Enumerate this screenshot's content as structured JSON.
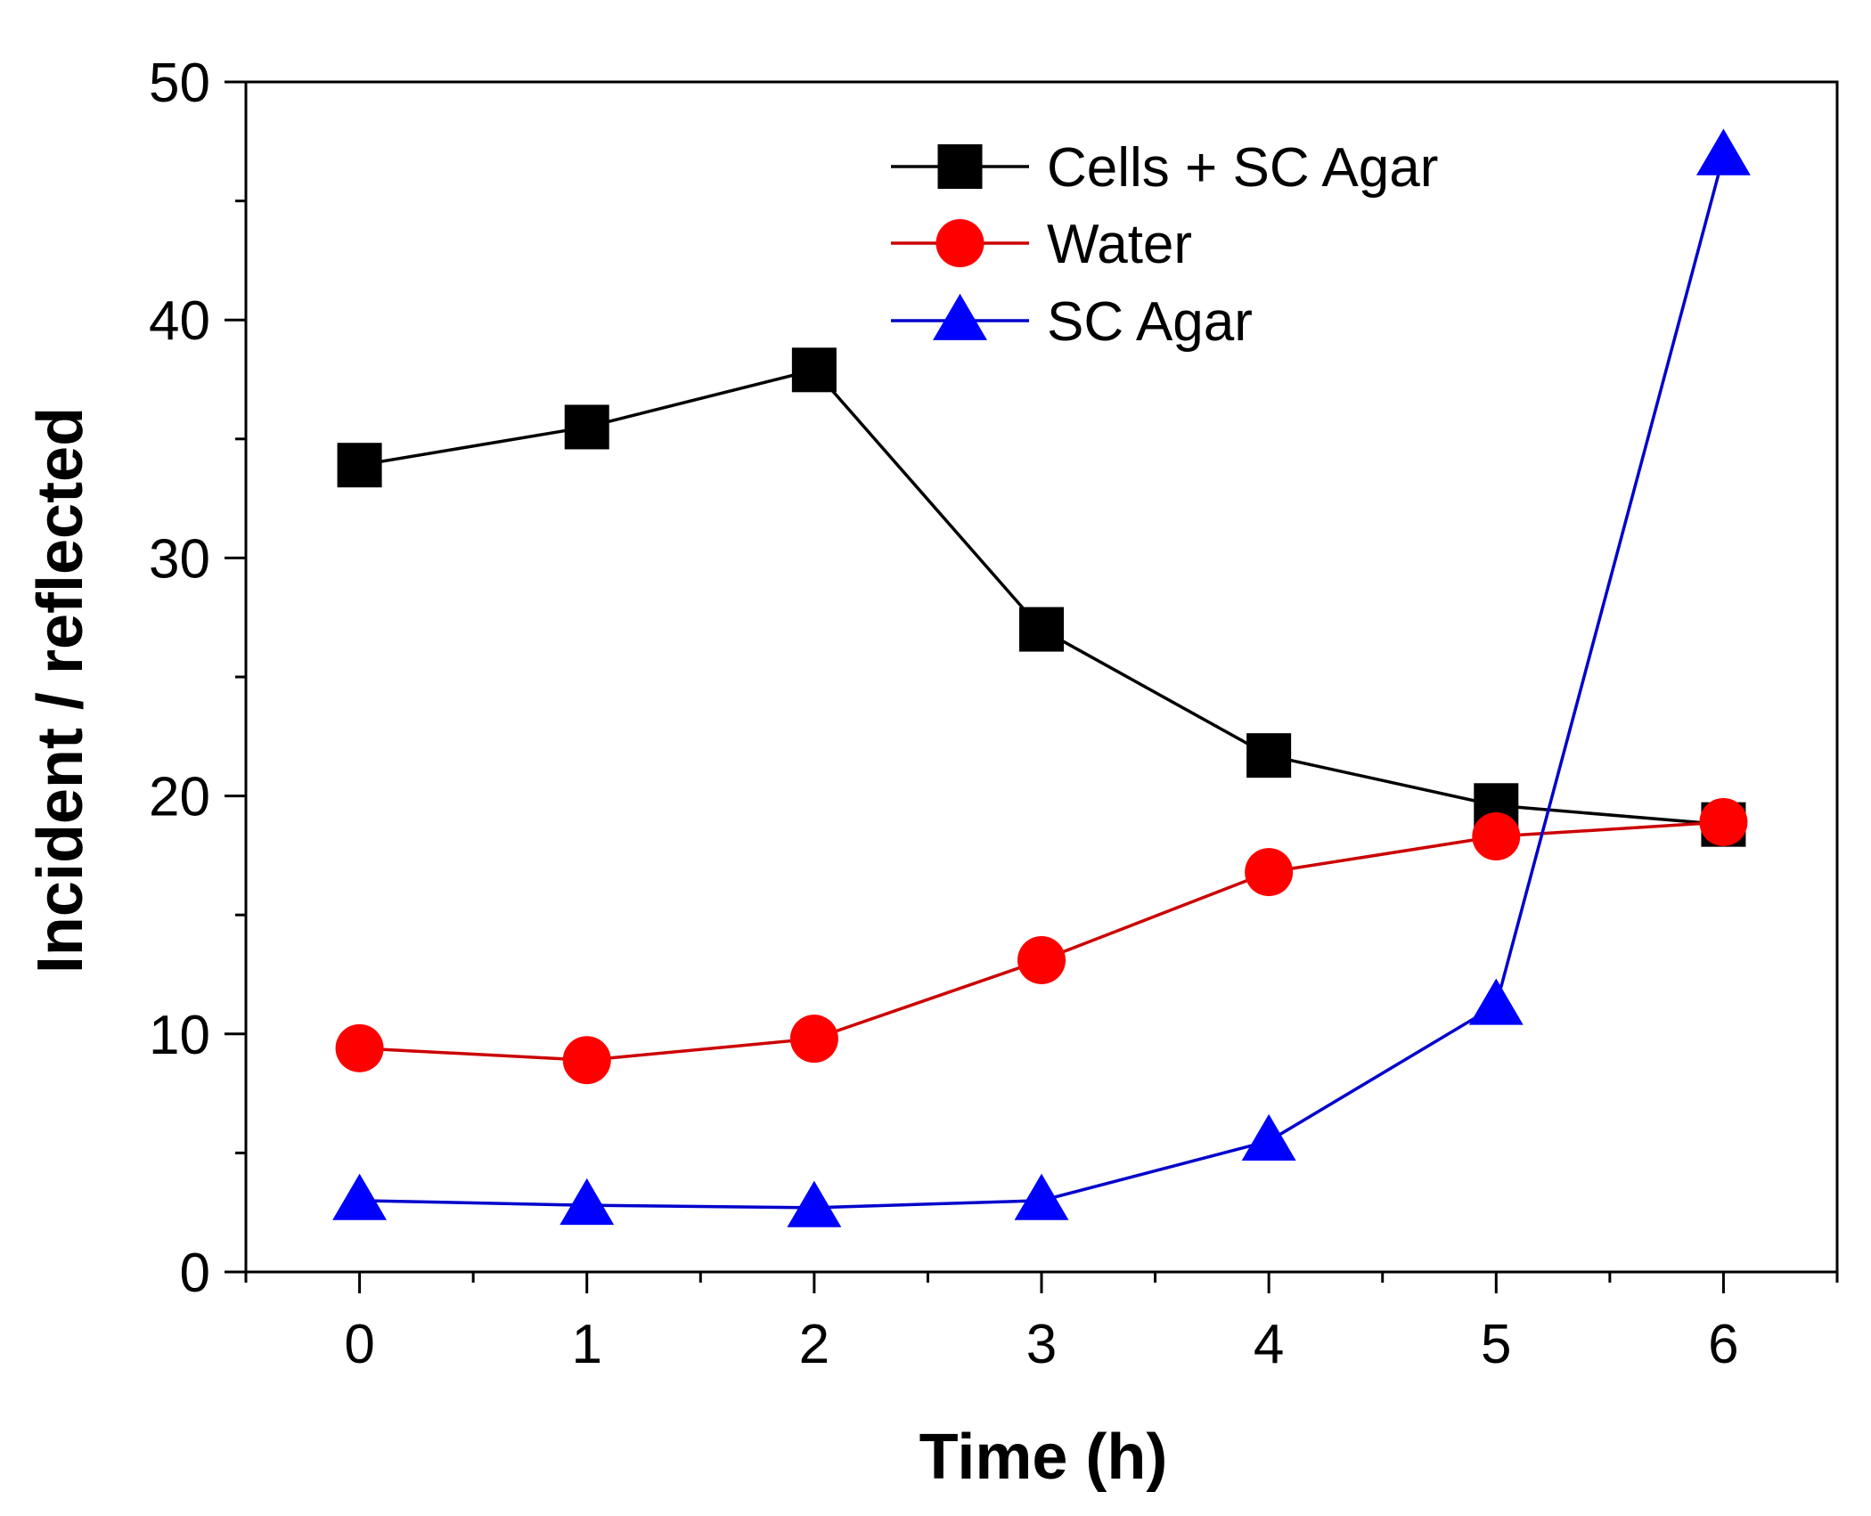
{
  "chart_data": {
    "type": "line",
    "title": "",
    "xlabel": "Time (h)",
    "ylabel": "Incident / reflected",
    "xlim": [
      -0.5,
      6.5
    ],
    "ylim": [
      0,
      50
    ],
    "x": [
      0,
      1,
      2,
      3,
      4,
      5,
      6
    ],
    "x_ticks": [
      "0",
      "1",
      "2",
      "3",
      "4",
      "5",
      "6"
    ],
    "y_ticks": [
      "0",
      "10",
      "20",
      "30",
      "40",
      "50"
    ],
    "grid": false,
    "legend_position": "top-right",
    "series": [
      {
        "name": "Cells + SC Agar",
        "marker": "square",
        "color": "#000000",
        "line_color": "#000000",
        "values": [
          33.9,
          35.5,
          37.9,
          27.0,
          21.7,
          19.6,
          18.8
        ]
      },
      {
        "name": "Water",
        "marker": "circle",
        "color": "#ff0000",
        "line_color": "#cc0000",
        "values": [
          9.4,
          8.9,
          9.8,
          13.1,
          16.8,
          18.3,
          18.9
        ]
      },
      {
        "name": "SC Agar",
        "marker": "triangle",
        "color": "#0000ff",
        "line_color": "#0000cc",
        "values": [
          3.0,
          2.8,
          2.7,
          3.0,
          5.5,
          11.2,
          46.9
        ]
      }
    ]
  }
}
